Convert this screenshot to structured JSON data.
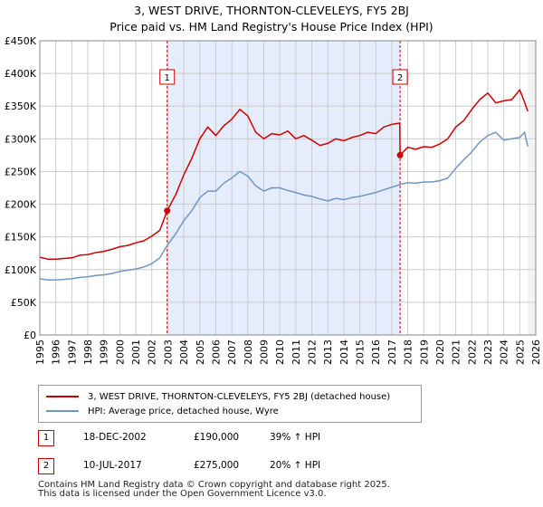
{
  "title": "3, WEST DRIVE, THORNTON-CLEVELEYS, FY5 2BJ",
  "subtitle": "Price paid vs. HM Land Registry's House Price Index (HPI)",
  "colors": {
    "property": "#cc0000",
    "hpi": "#6f96c4",
    "shade": "#e5ecfb",
    "grid": "#cccccc",
    "vline": "#cc0000"
  },
  "chart_data": {
    "type": "line",
    "title": "3, WEST DRIVE, THORNTON-CLEVELEYS, FY5 2BJ",
    "subtitle": "Price paid vs. HM Land Registry's House Price Index (HPI)",
    "xlabel": "",
    "ylabel": "",
    "xlim": [
      1995,
      2026
    ],
    "ylim": [
      0,
      450000
    ],
    "x_ticks": [
      "1995",
      "1996",
      "1997",
      "1998",
      "1999",
      "2000",
      "2001",
      "2002",
      "2003",
      "2004",
      "2005",
      "2006",
      "2007",
      "2008",
      "2009",
      "2010",
      "2011",
      "2012",
      "2013",
      "2014",
      "2015",
      "2016",
      "2017",
      "2018",
      "2019",
      "2020",
      "2021",
      "2022",
      "2023",
      "2024",
      "2025",
      "2026"
    ],
    "y_ticks": [
      {
        "value": 0,
        "label": "£0"
      },
      {
        "value": 50000,
        "label": "£50K"
      },
      {
        "value": 100000,
        "label": "£100K"
      },
      {
        "value": 150000,
        "label": "£150K"
      },
      {
        "value": 200000,
        "label": "£200K"
      },
      {
        "value": 250000,
        "label": "£250K"
      },
      {
        "value": 300000,
        "label": "£300K"
      },
      {
        "value": 350000,
        "label": "£350K"
      },
      {
        "value": 400000,
        "label": "£400K"
      },
      {
        "value": 450000,
        "label": "£450K"
      }
    ],
    "grid": true,
    "shaded_range": [
      2002.96,
      2017.52
    ],
    "series": [
      {
        "name": "3, WEST DRIVE, THORNTON-CLEVELEYS, FY5 2BJ (detached house)",
        "x": [
          1995,
          1995.5,
          1996,
          1996.5,
          1997,
          1997.5,
          1998,
          1998.5,
          1999,
          1999.5,
          2000,
          2000.5,
          2001,
          2001.5,
          2002,
          2002.5,
          2002.96,
          2003.5,
          2004,
          2004.5,
          2005,
          2005.5,
          2006,
          2006.5,
          2007,
          2007.5,
          2008,
          2008.5,
          2009,
          2009.5,
          2010,
          2010.5,
          2011,
          2011.5,
          2012,
          2012.5,
          2013,
          2013.5,
          2014,
          2014.5,
          2015,
          2015.5,
          2016,
          2016.5,
          2017,
          2017.5,
          2017.52,
          2018,
          2018.5,
          2019,
          2019.5,
          2020,
          2020.5,
          2021,
          2021.5,
          2022,
          2022.5,
          2023,
          2023.5,
          2024,
          2024.5,
          2025,
          2025.3,
          2025.5
        ],
        "values": [
          119000,
          116000,
          116000,
          117000,
          118000,
          122000,
          123000,
          126000,
          128000,
          131000,
          135000,
          137000,
          141000,
          144000,
          151000,
          160000,
          190000,
          215000,
          245000,
          270000,
          300000,
          318000,
          305000,
          320000,
          330000,
          345000,
          335000,
          310000,
          300000,
          308000,
          306000,
          312000,
          300000,
          305000,
          298000,
          290000,
          293000,
          300000,
          297000,
          302000,
          305000,
          310000,
          308000,
          318000,
          322000,
          324000,
          275000,
          287000,
          284000,
          288000,
          287000,
          292000,
          300000,
          318000,
          328000,
          345000,
          360000,
          370000,
          355000,
          358000,
          360000,
          375000,
          356000,
          342000
        ]
      },
      {
        "name": "HPI: Average price, detached house, Wyre",
        "x": [
          1995,
          1995.5,
          1996,
          1996.5,
          1997,
          1997.5,
          1998,
          1998.5,
          1999,
          1999.5,
          2000,
          2000.5,
          2001,
          2001.5,
          2002,
          2002.5,
          2002.96,
          2003.5,
          2004,
          2004.5,
          2005,
          2005.5,
          2006,
          2006.5,
          2007,
          2007.5,
          2008,
          2008.5,
          2009,
          2009.5,
          2010,
          2010.5,
          2011,
          2011.5,
          2012,
          2012.5,
          2013,
          2013.5,
          2014,
          2014.5,
          2015,
          2015.5,
          2016,
          2016.5,
          2017,
          2017.5,
          2018,
          2018.5,
          2019,
          2019.5,
          2020,
          2020.5,
          2021,
          2021.5,
          2022,
          2022.5,
          2023,
          2023.5,
          2024,
          2024.5,
          2025,
          2025.3,
          2025.5
        ],
        "values": [
          86000,
          84000,
          84000,
          85000,
          86000,
          88000,
          89000,
          91000,
          92000,
          94000,
          97000,
          99000,
          101000,
          104000,
          109000,
          118000,
          137000,
          155000,
          175000,
          190000,
          210000,
          220000,
          220000,
          232000,
          240000,
          250000,
          243000,
          228000,
          220000,
          225000,
          225000,
          221000,
          218000,
          214000,
          212000,
          208000,
          205000,
          209000,
          207000,
          210000,
          212000,
          215000,
          218000,
          222000,
          226000,
          230000,
          233000,
          232000,
          234000,
          234000,
          236000,
          240000,
          255000,
          268000,
          280000,
          295000,
          305000,
          310000,
          298000,
          300000,
          302000,
          310000,
          288000
        ]
      }
    ],
    "annotations": [
      {
        "label": "1",
        "x": 2002.96
      },
      {
        "label": "2",
        "x": 2017.52
      }
    ],
    "sales": [
      {
        "label": "1",
        "x": 2002.96,
        "value": 190000
      },
      {
        "label": "2",
        "x": 2017.52,
        "value": 275000
      }
    ]
  },
  "sales_table": [
    {
      "num": "1",
      "date": "18-DEC-2002",
      "price": "£190,000",
      "hpi_change": "39% ↑ HPI"
    },
    {
      "num": "2",
      "date": "10-JUL-2017",
      "price": "£275,000",
      "hpi_change": "20% ↑ HPI"
    }
  ],
  "footer": {
    "line1": "Contains HM Land Registry data © Crown copyright and database right 2025.",
    "line2": "This data is licensed under the Open Government Licence v3.0."
  }
}
